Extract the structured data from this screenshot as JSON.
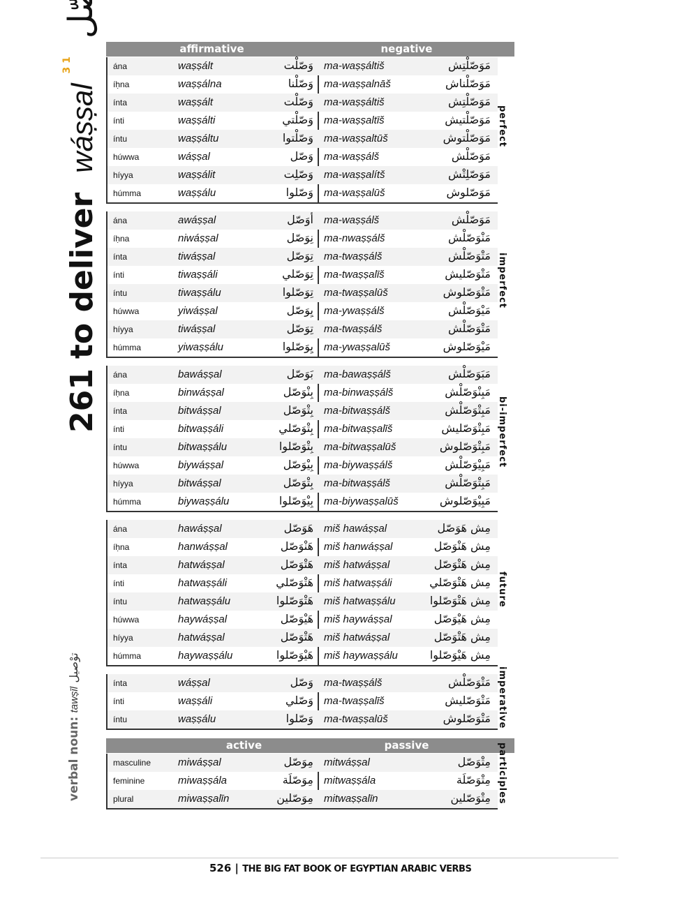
{
  "title": {
    "number": "261",
    "english": "to deliver",
    "translit": "wáṣṣal",
    "arabic": "وصّل",
    "class_mark": "1 3"
  },
  "verbal_noun": {
    "label": "verbal noun:",
    "translit": "tawṣīl",
    "arabic": "توْصيل"
  },
  "headers": {
    "affirmative": "affirmative",
    "negative": "negative",
    "active": "active",
    "passive": "passive"
  },
  "sections": [
    {
      "label": "perfect",
      "rows": [
        [
          "ána",
          "waṣṣált",
          "وَصّلْت",
          "ma-waṣṣáltiš",
          "مَوَصّلْتِش"
        ],
        [
          "íḥna",
          "waṣṣálna",
          "وَصّلْنا",
          "ma-waṣṣalnāš",
          "مَوَصّلْناش"
        ],
        [
          "ínta",
          "waṣṣált",
          "وَصّلْت",
          "ma-waṣṣáltiš",
          "مَوَصّلْتِش"
        ],
        [
          "ínti",
          "waṣṣálti",
          "وَصّلْتي",
          "ma-waṣṣaltīš",
          "مَوَصّلْتيش"
        ],
        [
          "íntu",
          "waṣṣáltu",
          "وَصّلْتوا",
          "ma-waṣṣaltūš",
          "مَوَصّلْتوش"
        ],
        [
          "húwwa",
          "wáṣṣal",
          "وَصّل",
          "ma-waṣṣálš",
          "مَوَصّلْش"
        ],
        [
          "híyya",
          "waṣṣálit",
          "وَصّلِت",
          "ma-waṣṣalítš",
          "مَوَصّلِتْش"
        ],
        [
          "húmma",
          "waṣṣálu",
          "وَصّلوا",
          "ma-waṣṣalūš",
          "مَوَصّلوش"
        ]
      ]
    },
    {
      "label": "imperfect",
      "rows": [
        [
          "ána",
          "awáṣṣal",
          "أوَصّل",
          "ma-waṣṣálš",
          "مَوَصّلْش"
        ],
        [
          "íḥna",
          "niwáṣṣal",
          "نِوَصّل",
          "ma-nwaṣṣálš",
          "مَنْوَصّلْش"
        ],
        [
          "ínta",
          "tiwáṣṣal",
          "تِوَصّل",
          "ma-twaṣṣálš",
          "مَتْوَصّلْش"
        ],
        [
          "ínti",
          "tiwaṣṣáli",
          "تِوَصّلي",
          "ma-twaṣṣalīš",
          "مَتْوَصّليش"
        ],
        [
          "íntu",
          "tiwaṣṣálu",
          "تِوَصّلوا",
          "ma-twaṣṣalūš",
          "مَتْوَصّلوش"
        ],
        [
          "húwwa",
          "yiwáṣṣal",
          "يِوَصّل",
          "ma-ywaṣṣálš",
          "مَيْوَصّلْش"
        ],
        [
          "híyya",
          "tiwáṣṣal",
          "تِوَصّل",
          "ma-twaṣṣálš",
          "مَتْوَصّلْش"
        ],
        [
          "húmma",
          "yiwaṣṣálu",
          "يِوَصّلوا",
          "ma-ywaṣṣalūš",
          "مَيْوَصّلوش"
        ]
      ]
    },
    {
      "label": "bi-imperfect",
      "rows": [
        [
          "ána",
          "bawáṣṣal",
          "بَوَصّل",
          "ma-bawaṣṣálš",
          "مَبَوَصّلْش"
        ],
        [
          "íḥna",
          "binwáṣṣal",
          "بِنْوَصّل",
          "ma-binwaṣṣálš",
          "مَبِنْوَصّلْش"
        ],
        [
          "ínta",
          "bitwáṣṣal",
          "بِتْوَصّل",
          "ma-bitwaṣṣálš",
          "مَبِتْوَصّلْش"
        ],
        [
          "ínti",
          "bitwaṣṣáli",
          "بِتْوَصّلي",
          "ma-bitwaṣṣalīš",
          "مَبِتْوَصّليش"
        ],
        [
          "íntu",
          "bitwaṣṣálu",
          "بِتْوَصّلوا",
          "ma-bitwaṣṣalūš",
          "مَبِتْوَصّلوش"
        ],
        [
          "húwwa",
          "biywáṣṣal",
          "بِيْوَصّل",
          "ma-biywaṣṣálš",
          "مَبِيْوَصّلْش"
        ],
        [
          "híyya",
          "bitwáṣṣal",
          "بِتْوَصّل",
          "ma-bitwaṣṣálš",
          "مَبِتْوَصّلْش"
        ],
        [
          "húmma",
          "biywaṣṣálu",
          "بِيْوَصّلوا",
          "ma-biywaṣṣalūš",
          "مَبِيْوَصّلوش"
        ]
      ]
    },
    {
      "label": "future",
      "rows": [
        [
          "ána",
          "hawáṣṣal",
          "هَوَصّل",
          "miš hawáṣṣal",
          "مِش هَوَصّل"
        ],
        [
          "íḥna",
          "hanwáṣṣal",
          "هَنْوَصّل",
          "miš hanwáṣṣal",
          "مِش هَنْوَصّل"
        ],
        [
          "ínta",
          "hatwáṣṣal",
          "هَتْوَصّل",
          "miš hatwáṣṣal",
          "مِش هَتْوَصّل"
        ],
        [
          "ínti",
          "hatwaṣṣáli",
          "هَتْوَصّلي",
          "miš hatwaṣṣáli",
          "مِش هَتْوَصّلي"
        ],
        [
          "íntu",
          "hatwaṣṣálu",
          "هَتْوَصّلوا",
          "miš hatwaṣṣálu",
          "مِش هَتْوَصّلوا"
        ],
        [
          "húwwa",
          "haywáṣṣal",
          "هَيْوَصّل",
          "miš haywáṣṣal",
          "مِش هَيْوَصّل"
        ],
        [
          "híyya",
          "hatwáṣṣal",
          "هَتْوَصّل",
          "miš hatwáṣṣal",
          "مِش هَتْوَصّل"
        ],
        [
          "húmma",
          "haywaṣṣálu",
          "هَيْوَصّلوا",
          "miš haywaṣṣálu",
          "مِش هَيْوَصّلوا"
        ]
      ]
    },
    {
      "label": "imperative",
      "rows": [
        [
          "ínta",
          "wáṣṣal",
          "وَصّل",
          "ma-twaṣṣálš",
          "مَتْوَصّلْش"
        ],
        [
          "ínti",
          "waṣṣáli",
          "وَصّلي",
          "ma-twaṣṣalīš",
          "مَتْوَصّليش"
        ],
        [
          "íntu",
          "waṣṣálu",
          "وَصّلوا",
          "ma-twaṣṣalūš",
          "مَتْوَصّلوش"
        ]
      ]
    },
    {
      "label": "participles",
      "rows": [
        [
          "masculine",
          "miwáṣṣal",
          "مِوَصّل",
          "mitwáṣṣal",
          "مِتْوَصّل"
        ],
        [
          "feminine",
          "miwaṣṣála",
          "مِوَصّلَة",
          "mitwaṣṣála",
          "مِتْوَصّلَة"
        ],
        [
          "plural",
          "miwaṣṣalīn",
          "مِوَصّلين",
          "mitwaṣṣalīn",
          "مِتْوَصّلين"
        ]
      ]
    }
  ],
  "footer": {
    "page": "526",
    "separator": "|",
    "book": "THE BIG FAT BOOK OF EGYPTIAN ARABIC VERBS"
  }
}
